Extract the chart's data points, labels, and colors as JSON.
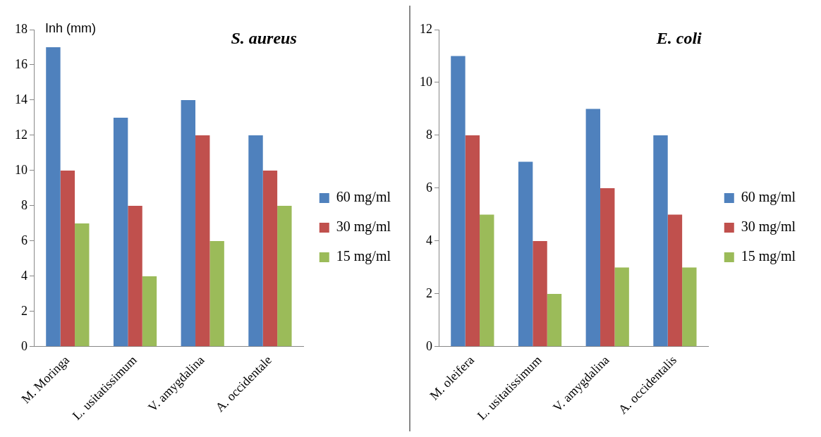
{
  "chart_data": [
    {
      "type": "bar",
      "title": "S. aureus",
      "ylabel": "Inh (mm)",
      "categories": [
        "M. Moringa",
        "L. usitatissimum",
        "V. amygdalina",
        "A. occidentale"
      ],
      "series": [
        {
          "name": "60 mg/ml",
          "color": "#4f81bd",
          "values": [
            17,
            13,
            14,
            12
          ]
        },
        {
          "name": "30 mg/ml",
          "color": "#c0504d",
          "values": [
            10,
            8,
            12,
            10
          ]
        },
        {
          "name": "15 mg/ml",
          "color": "#9bbb59",
          "values": [
            7,
            4,
            6,
            8
          ]
        }
      ],
      "ylim": [
        0,
        18
      ],
      "yticks": [
        0,
        2,
        4,
        6,
        8,
        10,
        12,
        14,
        16,
        18
      ],
      "grid": false,
      "legend": "right"
    },
    {
      "type": "bar",
      "title": "E. coli",
      "categories": [
        "M. oleifera",
        "L. usitatissimum",
        "V. amygdalina",
        "A. occidentalis"
      ],
      "series": [
        {
          "name": "60 mg/ml",
          "color": "#4f81bd",
          "values": [
            11,
            7,
            9,
            8
          ]
        },
        {
          "name": "30 mg/ml",
          "color": "#c0504d",
          "values": [
            8,
            4,
            6,
            5
          ]
        },
        {
          "name": "15 mg/ml",
          "color": "#9bbb59",
          "values": [
            5,
            2,
            3,
            3
          ]
        }
      ],
      "ylim": [
        0,
        12
      ],
      "yticks": [
        0,
        2,
        4,
        6,
        8,
        10,
        12
      ],
      "grid": false,
      "legend": "right"
    }
  ]
}
